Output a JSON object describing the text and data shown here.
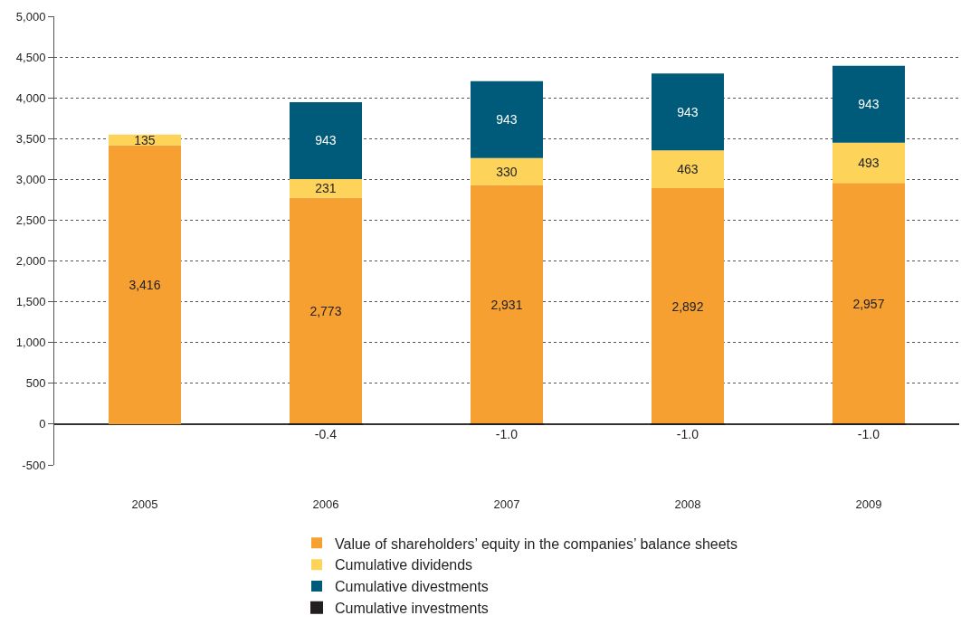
{
  "chart_data": {
    "type": "bar",
    "stacked": true,
    "categories": [
      "2005",
      "2006",
      "2007",
      "2008",
      "2009"
    ],
    "series": [
      {
        "name": "Value of shareholders’ equity in the companies’ balance sheets",
        "color": "#f5a031",
        "values": [
          3416,
          2773,
          2931,
          2892,
          2957
        ],
        "value_labels": [
          "3,416",
          "2,773",
          "2,931",
          "2,892",
          "2,957"
        ]
      },
      {
        "name": "Cumulative dividends",
        "color": "#fdd35a",
        "values": [
          135,
          231,
          330,
          463,
          493
        ],
        "value_labels": [
          "135",
          "231",
          "330",
          "463",
          "493"
        ]
      },
      {
        "name": "Cumulative divestments",
        "color": "#005a7a",
        "values": [
          null,
          943,
          943,
          943,
          943
        ],
        "value_labels": [
          null,
          "943",
          "943",
          "943",
          "943"
        ]
      },
      {
        "name": "Cumulative investments",
        "color": "#231f20",
        "values": [
          null,
          -0.4,
          -1.0,
          -1.0,
          -1.0
        ],
        "value_labels": [
          null,
          "-0.4",
          "-1.0",
          "-1.0",
          "-1.0"
        ]
      }
    ],
    "ylim": [
      -500,
      5000
    ],
    "yticks": [
      {
        "value": -500,
        "label": "-500"
      },
      0,
      500,
      {
        "value": 1000,
        "label": "1,000"
      },
      {
        "value": 1500,
        "label": "1,500"
      },
      {
        "value": 2000,
        "label": "2,000"
      },
      {
        "value": 2500,
        "label": "2,500"
      },
      {
        "value": 3000,
        "label": "3,000"
      },
      {
        "value": 3500,
        "label": "3,500"
      },
      {
        "value": 4000,
        "label": "4,000"
      },
      {
        "value": 4500,
        "label": "4,500"
      },
      {
        "value": 5000,
        "label": "5,000"
      }
    ],
    "grid": "y",
    "legend": "bottom"
  }
}
